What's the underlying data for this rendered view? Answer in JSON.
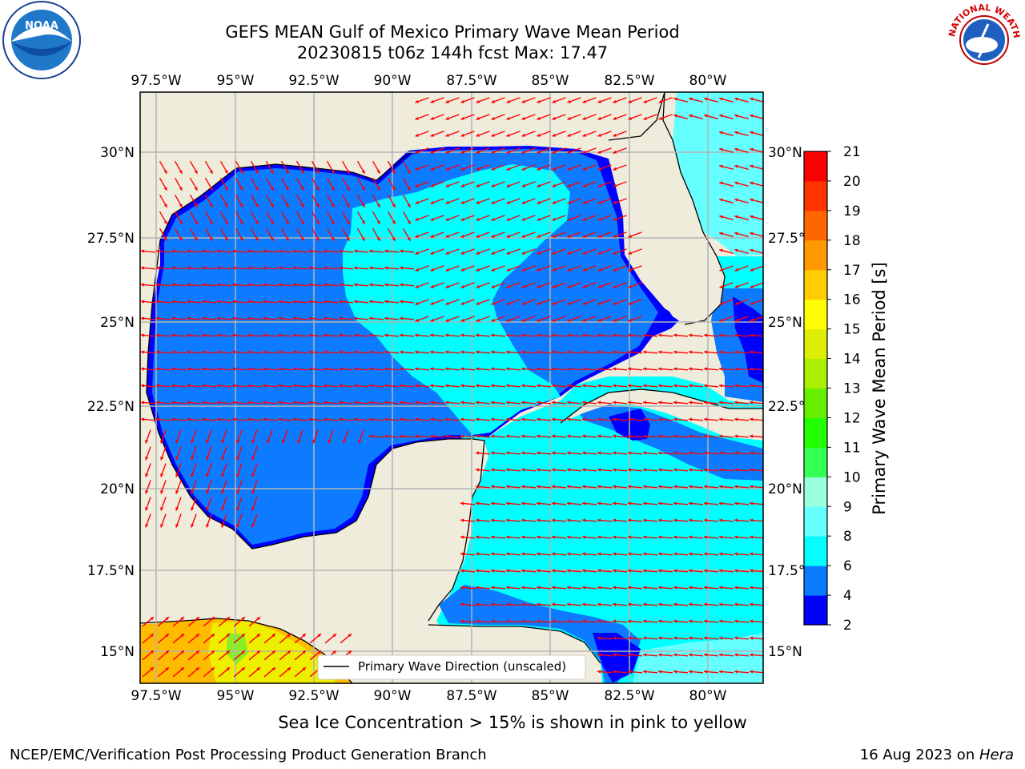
{
  "header": {
    "title_line1": "GEFS MEAN Gulf of Mexico Primary Wave Mean Period",
    "title_line2": "20230815 t06z 144h fcst   Max: 17.47"
  },
  "map": {
    "lon_ticks": [
      "97.5°W",
      "95°W",
      "92.5°W",
      "90°W",
      "87.5°W",
      "85°W",
      "82.5°W",
      "80°W"
    ],
    "lat_ticks": [
      "30°N",
      "27.5°N",
      "25°N",
      "22.5°N",
      "20°N",
      "17.5°N",
      "15°N"
    ],
    "legend_label": "Primary Wave Direction (unscaled)",
    "colors": {
      "land": "#efecdc",
      "water_2_4": "#0000ff",
      "water_4_6": "#0d7bff",
      "water_6_8": "#00ffff",
      "water_8_9": "#66ffff",
      "arrows": "#ff0000",
      "grid": "#b4b4b4"
    }
  },
  "colorbar": {
    "label": "Primary Wave Mean Period [s]",
    "ticks": [
      "2",
      "4",
      "6",
      "8",
      "9",
      "10",
      "11",
      "12",
      "13",
      "14",
      "15",
      "16",
      "17",
      "18",
      "19",
      "20",
      "21"
    ],
    "colors": [
      "#0000ff",
      "#0a7bff",
      "#00ffff",
      "#66ffff",
      "#99ffdd",
      "#33ff55",
      "#22ff00",
      "#66ee00",
      "#aaee00",
      "#ddee00",
      "#ffff00",
      "#ffcc00",
      "#ff9900",
      "#ff6600",
      "#ff3300",
      "#ff0000"
    ]
  },
  "footer": {
    "sea_ice_note": "Sea Ice Concentration > 15% is shown in pink to yellow",
    "credit_left": "NCEP/EMC/Verification Post Processing Product Generation Branch",
    "credit_date": "16 Aug 2023 on ",
    "credit_machine": "Hera"
  },
  "logos": {
    "noaa_text": "NOAA",
    "nws_text": "NATIONAL WEATHER SERVICE"
  }
}
